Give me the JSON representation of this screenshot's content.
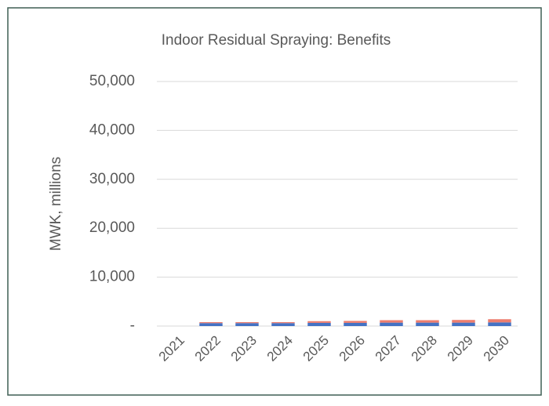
{
  "chart_data": {
    "type": "stacked-bar",
    "title": "Indoor Residual Spraying: Benefits",
    "y_label": "MWK, millions",
    "categories": [
      "2021",
      "2022",
      "2023",
      "2024",
      "2025",
      "2026",
      "2027",
      "2028",
      "2029",
      "2030"
    ],
    "series": [
      {
        "color": "#4472c4",
        "values": [
          0,
          600,
          600,
          600,
          650,
          650,
          700,
          700,
          700,
          750
        ]
      },
      {
        "color": "#ed7d6e",
        "values": [
          0,
          200,
          200,
          200,
          350,
          400,
          500,
          500,
          550,
          650
        ]
      }
    ],
    "ylim": [
      0,
      50000
    ],
    "yticks": [
      {
        "value": 0,
        "label": "-"
      },
      {
        "value": 10000,
        "label": "10,000"
      },
      {
        "value": 20000,
        "label": "20,000"
      },
      {
        "value": 30000,
        "label": "30,000"
      },
      {
        "value": 40000,
        "label": "40,000"
      },
      {
        "value": 50000,
        "label": "50,000"
      }
    ],
    "grid": true
  }
}
